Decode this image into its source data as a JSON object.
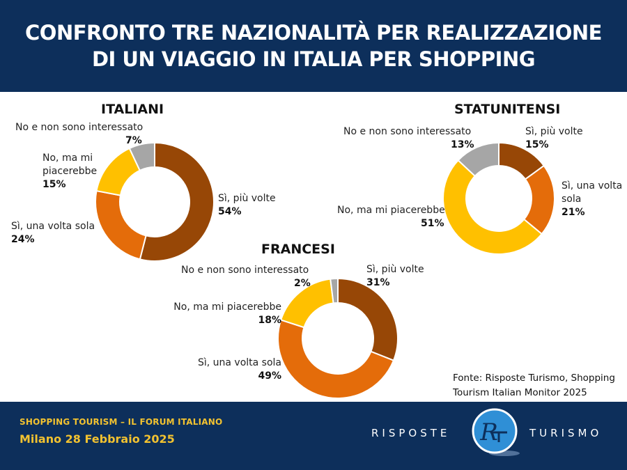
{
  "header": {
    "title": "CONFRONTO TRE NAZIONALITÀ PER REALIZZAZIONE DI UN VIAGGIO IN ITALIA PER SHOPPING"
  },
  "colors": {
    "si_piu_volte": "#974706",
    "si_una_volta_sola": "#e46c0a",
    "no_ma_mi_piacerebbe": "#ffc000",
    "no_non_interessato": "#a6a6a6",
    "navy": "#0d2f5b",
    "gold": "#f2c230"
  },
  "chart_data": [
    {
      "type": "pie",
      "title": "ITALIANI",
      "categories": [
        "Sì, più volte",
        "Sì, una volta sola",
        "No, ma mi piacerebbe",
        "No e non sono interessato"
      ],
      "values": [
        54,
        24,
        15,
        7
      ],
      "labels": [
        "54%",
        "24%",
        "15%",
        "7%"
      ]
    },
    {
      "type": "pie",
      "title": "STATUNITENSI",
      "categories": [
        "Sì, più volte",
        "Sì, una volta sola",
        "No, ma mi piacerebbe",
        "No e non sono interessato"
      ],
      "values": [
        15,
        21,
        51,
        13
      ],
      "labels": [
        "15%",
        "21%",
        "51%",
        "13%"
      ]
    },
    {
      "type": "pie",
      "title": "FRANCESI",
      "categories": [
        "Sì, più volte",
        "Sì, una volta sola",
        "No, ma mi piacerebbe",
        "No e non sono interessato"
      ],
      "values": [
        31,
        49,
        18,
        2
      ],
      "labels": [
        "31%",
        "49%",
        "18%",
        "2%"
      ]
    }
  ],
  "source": "Fonte: Risposte Turismo, Shopping Tourism Italian Monitor 2025",
  "footer": {
    "event": "SHOPPING TOURISM – IL FORUM ITALIANO",
    "date": "Milano 28 Febbraio 2025",
    "brand_left": "RISPOSTE",
    "brand_right": "TURISMO",
    "logo_text": "R"
  }
}
